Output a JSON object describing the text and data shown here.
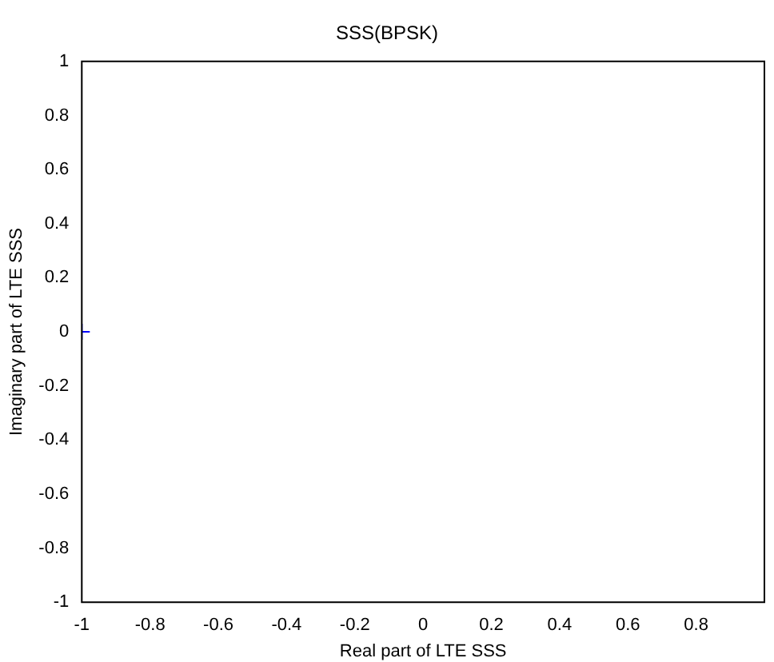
{
  "chart_data": {
    "type": "scatter",
    "title": "SSS(BPSK)",
    "xlabel": "Real part of LTE SSS",
    "ylabel": "Imaginary part of LTE SSS",
    "x": [
      -1
    ],
    "series": [
      {
        "color": "#0000ff",
        "values": [
          0
        ]
      }
    ],
    "xlim": [
      -1,
      1
    ],
    "xticks": [
      -1,
      -0.8,
      -0.6,
      -0.4,
      -0.2,
      0,
      0.2,
      0.4,
      0.6,
      0.8
    ],
    "ylim": [
      -1,
      1
    ],
    "yticks": [
      -1,
      -0.8,
      -0.6,
      -0.4,
      -0.2,
      0,
      0.2,
      0.4,
      0.6,
      0.8,
      1
    ],
    "marker": "cross",
    "grid": false,
    "legend": false
  }
}
